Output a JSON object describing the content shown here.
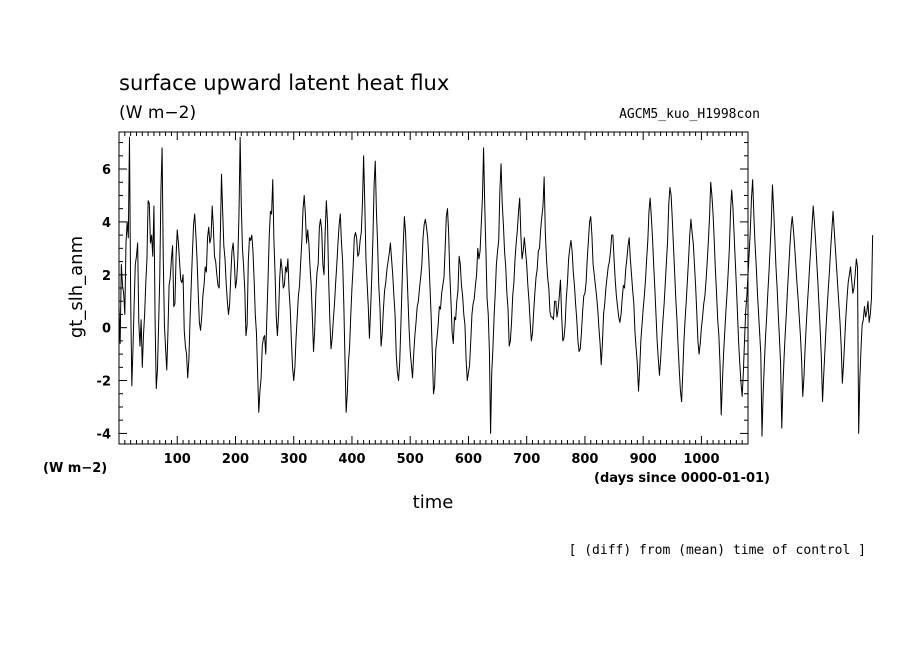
{
  "chart_data": {
    "type": "line",
    "title": "surface upward latent heat flux",
    "subtitle": "(W m−2)",
    "experiment": "AGCM5_kuo_H1998con",
    "xlabel": "time",
    "x_units": "(days since 0000-01-01)",
    "ylabel": "gt_slh_anm",
    "y_units": "(W m−2)",
    "footnote": "[ (diff) from (mean) time of control ]",
    "xlim": [
      0,
      1080
    ],
    "ylim": [
      -4.4,
      7.4
    ],
    "x_ticks": [
      100,
      200,
      300,
      400,
      500,
      600,
      700,
      800,
      900,
      1000
    ],
    "y_ticks": [
      -4,
      -2,
      0,
      2,
      4,
      6
    ],
    "x_minor_step": 10,
    "y_minor_step": 0.5,
    "grid": false,
    "legend": "none",
    "line_color": "#000000",
    "series": [
      {
        "x_start": 0,
        "x_step": 2,
        "values": [
          0.8,
          -0.6,
          2.4,
          1.6,
          1.3,
          0.5,
          3.2,
          4.0,
          3.4,
          7.2,
          1.2,
          -2.2,
          -0.8,
          0.9,
          2.4,
          2.7,
          3.2,
          0.2,
          -0.7,
          0.3,
          -1.5,
          -0.3,
          0.5,
          1.7,
          2.6,
          4.8,
          4.7,
          3.2,
          3.5,
          2.7,
          4.6,
          0.2,
          -2.3,
          -1.6,
          0.1,
          1.9,
          5.2,
          6.8,
          2.6,
          0.1,
          -0.8,
          -1.6,
          -0.2,
          1.6,
          1.9,
          2.6,
          3.1,
          0.8,
          0.9,
          2.7,
          3.7,
          3.2,
          2.5,
          1.8,
          1.7,
          2.0,
          -0.1,
          -0.7,
          -1.0,
          -1.9,
          -1.2,
          0.3,
          1.6,
          2.8,
          3.9,
          4.3,
          3.5,
          2.6,
          1.3,
          0.2,
          -0.1,
          0.4,
          1.2,
          1.6,
          2.3,
          2.1,
          3.4,
          3.8,
          3.2,
          3.4,
          4.6,
          3.8,
          2.7,
          2.5,
          2.0,
          1.6,
          1.5,
          3.5,
          5.8,
          4.4,
          3.1,
          2.6,
          1.7,
          1.0,
          0.5,
          0.9,
          2.0,
          2.9,
          3.2,
          2.5,
          1.5,
          1.8,
          2.6,
          4.3,
          7.2,
          4.6,
          3.0,
          2.3,
          1.4,
          -0.3,
          0.1,
          2.5,
          3.4,
          3.3,
          3.5,
          2.9,
          1.8,
          0.5,
          -0.2,
          -1.7,
          -3.2,
          -2.4,
          -1.9,
          -0.7,
          -0.4,
          -0.3,
          -1.0,
          0.5,
          1.9,
          3.5,
          4.4,
          4.3,
          5.6,
          3.3,
          2.0,
          0.4,
          -0.3,
          0.5,
          1.9,
          2.6,
          2.2,
          1.5,
          1.6,
          2.3,
          2.1,
          2.6,
          1.4,
          0.7,
          -0.5,
          -1.5,
          -2.0,
          -1.5,
          -0.4,
          0.4,
          1.2,
          1.6,
          2.5,
          3.3,
          4.5,
          5.0,
          4.3,
          3.2,
          3.7,
          3.2,
          2.3,
          1.6,
          0.4,
          -0.9,
          -0.1,
          1.3,
          2.1,
          2.4,
          3.8,
          4.1,
          3.7,
          2.4,
          2.0,
          3.6,
          4.8,
          4.0,
          1.8,
          0.3,
          -0.8,
          -0.4,
          0.3,
          0.9,
          1.7,
          2.4,
          3.2,
          3.9,
          4.3,
          3.2,
          2.5,
          0.9,
          -1.2,
          -3.2,
          -2.5,
          -1.3,
          -0.7,
          0.5,
          1.5,
          2.3,
          3.4,
          3.6,
          3.4,
          2.7,
          2.8,
          3.3,
          3.6,
          4.7,
          6.5,
          4.7,
          2.6,
          1.7,
          0.8,
          -0.4,
          0.7,
          1.9,
          3.4,
          5.4,
          6.3,
          4.4,
          3.2,
          1.6,
          0.8,
          -0.7,
          -0.2,
          0.7,
          1.4,
          1.7,
          2.2,
          2.5,
          2.8,
          3.2,
          2.6,
          2.0,
          1.2,
          0.5,
          -1.0,
          -1.7,
          -2.0,
          -1.3,
          0.1,
          1.6,
          3.1,
          4.2,
          3.6,
          2.4,
          1.2,
          0.0,
          -0.9,
          -1.4,
          -1.9,
          -1.0,
          -0.3,
          0.2,
          0.8,
          1.0,
          1.5,
          1.9,
          2.4,
          3.4,
          3.9,
          4.1,
          3.8,
          3.4,
          2.6,
          1.5,
          0.4,
          -1.0,
          -2.5,
          -2.2,
          -0.8,
          -0.4,
          0.1,
          0.8,
          0.7,
          1.3,
          1.6,
          1.9,
          3.0,
          4.2,
          4.5,
          3.6,
          2.0,
          1.0,
          -0.2,
          -0.6,
          0.4,
          0.3,
          1.0,
          1.4,
          2.7,
          2.4,
          1.6,
          1.2,
          0.5,
          0.1,
          -1.2,
          -2.0,
          -1.7,
          -1.4,
          -0.5,
          0.5,
          0.9,
          1.1,
          1.6,
          2.0,
          3.0,
          2.6,
          2.9,
          3.9,
          4.9,
          6.8,
          4.6,
          2.9,
          1.1,
          0.5,
          -0.9,
          -4.0,
          -1.7,
          -0.8,
          0.4,
          1.3,
          2.4,
          2.9,
          3.3,
          5.2,
          6.2,
          4.7,
          3.9,
          2.9,
          2.3,
          1.3,
          0.7,
          -0.7,
          -0.5,
          0.2,
          1.2,
          1.7,
          2.6,
          3.2,
          3.7,
          4.4,
          4.9,
          3.5,
          2.6,
          2.9,
          3.4,
          2.9,
          2.4,
          1.6,
          1.0,
          0.2,
          -0.5,
          -0.2,
          0.6,
          1.3,
          1.9,
          2.2,
          2.9,
          3.0,
          3.7,
          4.2,
          4.6,
          5.7,
          3.6,
          2.6,
          1.9,
          1.5,
          0.6,
          0.4,
          0.4,
          0.3,
          1.0,
          1.0,
          0.4,
          0.7,
          1.2,
          1.8,
          0.5,
          -0.5,
          -0.4,
          0.1,
          1.1,
          1.7,
          2.6,
          3.0,
          3.3,
          2.9,
          2.1,
          1.6,
          0.9,
          0.3,
          -0.5,
          -0.9,
          -0.8,
          -0.2,
          0.6,
          1.2,
          1.3,
          1.7,
          2.6,
          3.3,
          4.0,
          4.2,
          3.5,
          2.4,
          2.0,
          1.6,
          1.2,
          0.7,
          0.0,
          -0.6,
          -1.4,
          -0.6,
          0.5,
          0.9,
          1.5,
          1.9,
          2.3,
          2.5,
          2.9,
          3.5,
          3.5,
          2.6,
          1.8,
          1.2,
          0.8,
          0.4,
          0.2,
          0.5,
          1.1,
          1.6,
          1.5,
          2.2,
          2.6,
          3.1,
          3.4,
          2.6,
          2.0,
          1.4,
          0.9,
          -0.2,
          -0.8,
          -1.4,
          -2.4,
          -1.6,
          -0.5,
          0.1,
          0.7,
          1.2,
          1.8,
          2.6,
          3.3,
          4.4,
          4.9,
          4.2,
          3.4,
          2.4,
          1.5,
          0.5,
          -0.5,
          -1.2,
          -1.8,
          -1.2,
          -0.4,
          0.3,
          0.9,
          1.7,
          2.5,
          3.3,
          4.7,
          5.3,
          5.0,
          4.1,
          3.1,
          2.1,
          1.1,
          0.3,
          -0.7,
          -1.6,
          -2.4,
          -2.8,
          -1.7,
          -0.5,
          0.3,
          1.0,
          1.8,
          2.6,
          3.5,
          4.1,
          3.6,
          3.2,
          2.4,
          1.6,
          0.6,
          -0.5,
          -1.0,
          -0.6,
          0.0,
          0.4,
          0.9,
          1.2,
          1.8,
          2.5,
          3.3,
          4.2,
          5.5,
          5.0,
          4.3,
          3.3,
          2.2,
          1.3,
          0.3,
          -0.3,
          -1.4,
          -3.3,
          -2.1,
          -1.0,
          -0.2,
          0.6,
          1.3,
          2.1,
          3.0,
          4.4,
          5.2,
          4.6,
          3.6,
          2.6,
          1.6,
          0.5,
          -0.6,
          -1.4,
          -2.1,
          -2.6,
          -1.7,
          -0.5,
          0.6,
          1.2,
          2.0,
          2.8,
          3.7,
          4.9,
          5.6,
          4.3,
          3.2,
          2.4,
          1.4,
          0.6,
          -0.2,
          -1.0,
          -4.1,
          -2.5,
          -1.4,
          -0.4,
          0.4,
          1.3,
          2.1,
          3.0,
          4.0,
          5.4,
          4.5,
          3.4,
          2.3,
          1.5,
          0.5,
          -0.4,
          -1.4,
          -3.8,
          -2.2,
          -1.1,
          -0.2,
          0.6,
          1.5,
          2.3,
          3.1,
          3.8,
          4.2,
          3.7,
          3.1,
          2.4,
          1.7,
          1.1,
          0.4,
          -0.3,
          -1.2,
          -2.6,
          -1.9,
          -0.8,
          0.1,
          0.9,
          1.6,
          2.4,
          3.1,
          3.9,
          4.6,
          4.0,
          3.3,
          2.5,
          1.7,
          0.8,
          -0.1,
          -1.2,
          -2.8,
          -1.8,
          -0.9,
          0.0,
          0.8,
          1.5,
          2.2,
          3.0,
          3.7,
          4.4,
          3.7,
          3.0,
          2.3,
          1.6,
          0.9,
          0.2,
          -0.7,
          -2.1,
          -1.4,
          -0.5,
          0.4,
          1.1,
          1.7,
          2.0,
          2.3,
          1.8,
          1.3,
          1.5,
          2.0,
          2.6,
          2.3,
          -4.0,
          -2.0,
          -0.8,
          0.1,
          0.3,
          0.8,
          0.4,
          0.6,
          1.0,
          0.2,
          0.5,
          1.1,
          3.5
        ]
      }
    ]
  }
}
